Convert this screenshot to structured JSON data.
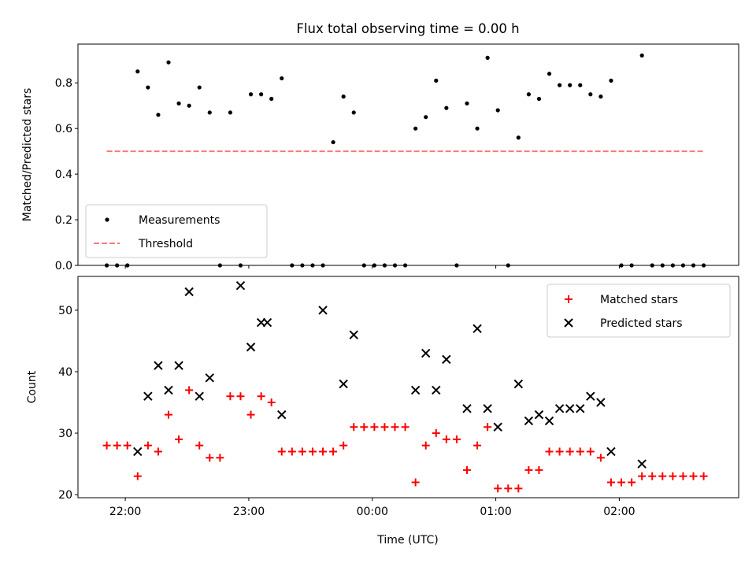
{
  "figure": {
    "title": "Flux total observing time = 0.00 h"
  },
  "chart_data": [
    {
      "type": "scatter",
      "title": "Flux total observing time = 0.00 h",
      "xlabel": "",
      "ylabel": "Matched/Predicted stars",
      "xlim": [
        "21:37",
        "02:58"
      ],
      "ylim": [
        0,
        0.97
      ],
      "yticks": [
        0.0,
        0.2,
        0.4,
        0.6,
        0.8
      ],
      "ytick_labels": [
        "0.0",
        "0.2",
        "0.4",
        "0.6",
        "0.8"
      ],
      "xticks": [
        "22:00",
        "23:00",
        "00:00",
        "01:00",
        "02:00"
      ],
      "show_xtick_labels": false,
      "grid": false,
      "legend": {
        "position": "lower-left",
        "entries": [
          "Measurements",
          "Threshold"
        ]
      },
      "series": [
        {
          "name": "Measurements",
          "kind": "scatter",
          "marker": "dot",
          "color": "#000000",
          "x": [
            "21:51",
            "21:56",
            "22:01",
            "22:06",
            "22:11",
            "22:16",
            "22:21",
            "22:26",
            "22:31",
            "22:36",
            "22:41",
            "22:46",
            "22:51",
            "22:56",
            "23:01",
            "23:06",
            "23:11",
            "23:16",
            "23:21",
            "23:26",
            "23:31",
            "23:36",
            "23:41",
            "23:46",
            "23:51",
            "23:56",
            "00:01",
            "00:06",
            "00:11",
            "00:16",
            "00:21",
            "00:26",
            "00:31",
            "00:36",
            "00:41",
            "00:46",
            "00:51",
            "00:56",
            "01:01",
            "01:06",
            "01:11",
            "01:16",
            "01:21",
            "01:26",
            "01:31",
            "01:36",
            "01:41",
            "01:46",
            "01:51",
            "01:56",
            "02:01",
            "02:06",
            "02:11",
            "02:16",
            "02:21",
            "02:26",
            "02:31",
            "02:36",
            "02:41"
          ],
          "y": [
            0.0,
            0.0,
            0.0,
            0.85,
            0.78,
            0.66,
            0.89,
            0.71,
            0.7,
            0.78,
            0.67,
            0.0,
            0.67,
            0.0,
            0.75,
            0.75,
            0.73,
            0.82,
            0.0,
            0.0,
            0.0,
            0.0,
            0.54,
            0.74,
            0.67,
            0.0,
            0.0,
            0.0,
            0.0,
            0.0,
            0.6,
            0.65,
            0.81,
            0.69,
            0.0,
            0.71,
            0.6,
            0.91,
            0.68,
            0.0,
            0.56,
            0.75,
            0.73,
            0.84,
            0.79,
            0.79,
            0.79,
            0.75,
            0.74,
            0.81,
            0.0,
            0.0,
            0.92,
            0.0,
            0.0,
            0.0,
            0.0,
            0.0,
            0.0
          ]
        },
        {
          "name": "Threshold",
          "kind": "line",
          "style": "dashed",
          "color": "#ff7777",
          "x": [
            "21:51",
            "02:41"
          ],
          "y": [
            0.5,
            0.5
          ]
        }
      ]
    },
    {
      "type": "scatter",
      "title": "",
      "xlabel": "Time (UTC)",
      "ylabel": "Count",
      "xlim": [
        "21:37",
        "02:58"
      ],
      "ylim": [
        19.5,
        55.5
      ],
      "yticks": [
        20,
        30,
        40,
        50
      ],
      "ytick_labels": [
        "20",
        "30",
        "40",
        "50"
      ],
      "xticks": [
        "22:00",
        "23:00",
        "00:00",
        "01:00",
        "02:00"
      ],
      "xtick_labels": [
        "22:00",
        "23:00",
        "00:00",
        "01:00",
        "02:00"
      ],
      "grid": false,
      "legend": {
        "position": "upper-right",
        "entries": [
          "Matched stars",
          "Predicted stars"
        ]
      },
      "series": [
        {
          "name": "Matched stars",
          "kind": "scatter",
          "marker": "plus",
          "color": "#ff0000",
          "x": [
            "21:51",
            "21:56",
            "22:01",
            "22:06",
            "22:11",
            "22:16",
            "22:21",
            "22:26",
            "22:31",
            "22:36",
            "22:41",
            "22:46",
            "22:51",
            "22:56",
            "23:01",
            "23:06",
            "23:11",
            "23:16",
            "23:21",
            "23:26",
            "23:31",
            "23:36",
            "23:41",
            "23:46",
            "23:51",
            "23:56",
            "00:01",
            "00:06",
            "00:11",
            "00:16",
            "00:21",
            "00:26",
            "00:31",
            "00:36",
            "00:41",
            "00:46",
            "00:51",
            "00:56",
            "01:01",
            "01:06",
            "01:11",
            "01:16",
            "01:21",
            "01:26",
            "01:31",
            "01:36",
            "01:41",
            "01:46",
            "01:51",
            "01:56",
            "02:01",
            "02:06",
            "02:11",
            "02:16",
            "02:21",
            "02:26",
            "02:31",
            "02:36",
            "02:41"
          ],
          "y": [
            28,
            28,
            28,
            23,
            28,
            27,
            33,
            29,
            37,
            28,
            26,
            26,
            36,
            36,
            33,
            36,
            35,
            27,
            27,
            27,
            27,
            27,
            27,
            28,
            31,
            31,
            31,
            31,
            31,
            31,
            22,
            28,
            30,
            29,
            29,
            24,
            28,
            31,
            21,
            21,
            21,
            24,
            24,
            27,
            27,
            27,
            27,
            27,
            26,
            22,
            22,
            22,
            23,
            23,
            23,
            23,
            23,
            23,
            23
          ]
        },
        {
          "name": "Predicted stars",
          "kind": "scatter",
          "marker": "x",
          "color": "#000000",
          "x": [
            "22:06",
            "22:11",
            "22:16",
            "22:21",
            "22:26",
            "22:31",
            "22:36",
            "22:41",
            "22:56",
            "23:01",
            "23:06",
            "23:09",
            "23:16",
            "23:36",
            "23:46",
            "23:51",
            "00:21",
            "00:26",
            "00:31",
            "00:36",
            "00:46",
            "00:51",
            "00:56",
            "01:01",
            "01:11",
            "01:16",
            "01:21",
            "01:26",
            "01:31",
            "01:36",
            "01:41",
            "01:46",
            "01:51",
            "01:56",
            "02:11"
          ],
          "y": [
            27,
            36,
            41,
            37,
            41,
            53,
            36,
            39,
            54,
            44,
            48,
            48,
            33,
            50,
            38,
            46,
            37,
            43,
            37,
            42,
            34,
            47,
            34,
            31,
            38,
            32,
            33,
            32,
            34,
            34,
            34,
            36,
            35,
            27,
            25
          ]
        }
      ]
    }
  ]
}
